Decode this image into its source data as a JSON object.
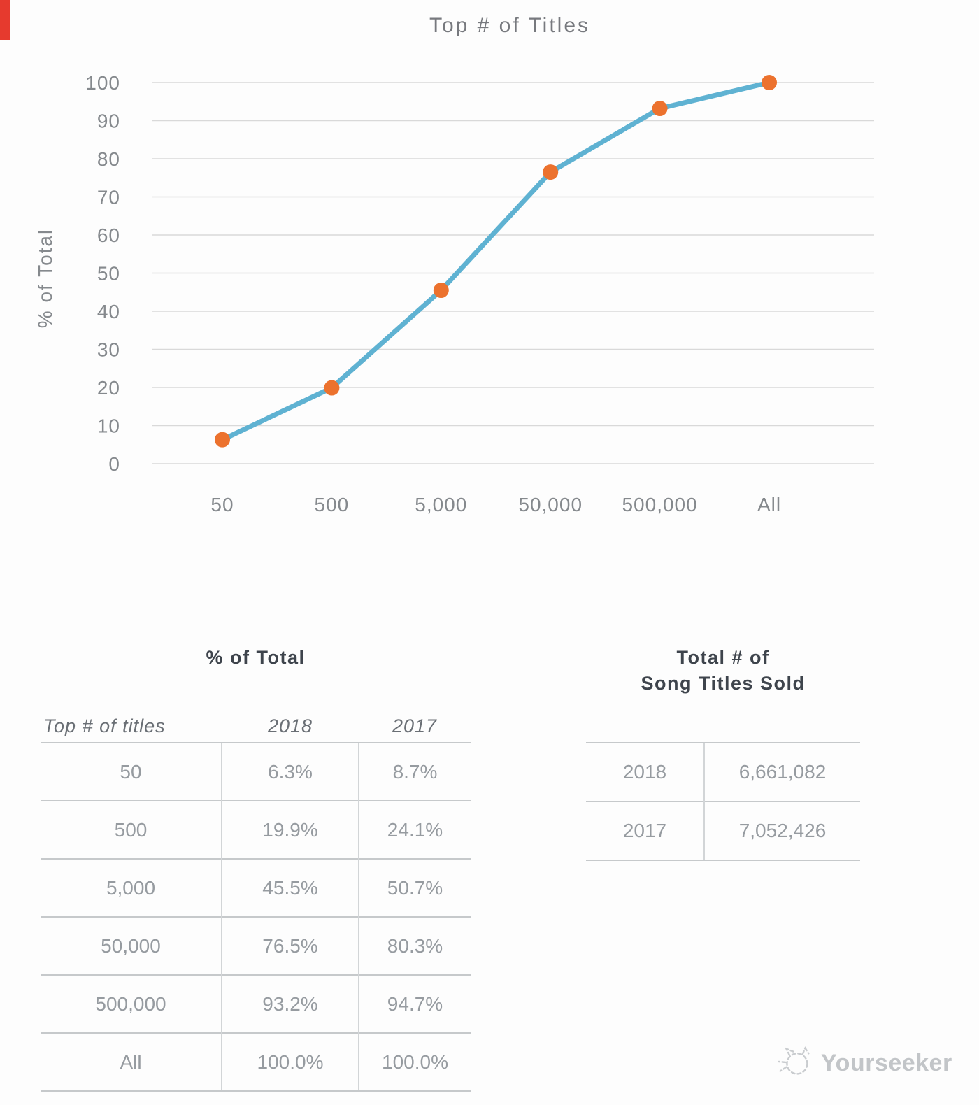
{
  "page": {
    "background": "#fdfdfd",
    "corner_marker_color": "#e63a2e"
  },
  "chart_data": {
    "type": "line",
    "title": "Top # of Titles",
    "xlabel": "",
    "ylabel": "% of Total",
    "categories": [
      "50",
      "500",
      "5,000",
      "50,000",
      "500,000",
      "All"
    ],
    "series": [
      {
        "name": "2018",
        "values": [
          6.3,
          19.9,
          45.5,
          76.5,
          93.2,
          100.0
        ]
      }
    ],
    "ylim": [
      0,
      100
    ],
    "ytick_step": 10,
    "grid": "horizontal",
    "legend": "none",
    "line_color": "#5fb2d2",
    "marker_color": "#ec722e",
    "gridline_color": "#d9d9d9"
  },
  "percent_table": {
    "title": "% of Total",
    "columns": [
      "Top # of titles",
      "2018",
      "2017"
    ],
    "rows": [
      [
        "50",
        "6.3%",
        "8.7%"
      ],
      [
        "500",
        "19.9%",
        "24.1%"
      ],
      [
        "5,000",
        "45.5%",
        "50.7%"
      ],
      [
        "50,000",
        "76.5%",
        "80.3%"
      ],
      [
        "500,000",
        "93.2%",
        "94.7%"
      ],
      [
        "All",
        "100.0%",
        "100.0%"
      ]
    ]
  },
  "totals_table": {
    "title_line1": "Total # of",
    "title_line2": "Song Titles Sold",
    "rows": [
      [
        "2018",
        "6,661,082"
      ],
      [
        "2017",
        "7,052,426"
      ]
    ]
  },
  "watermark": {
    "text": "Yourseeker",
    "icon": "doodle-cat-icon"
  }
}
